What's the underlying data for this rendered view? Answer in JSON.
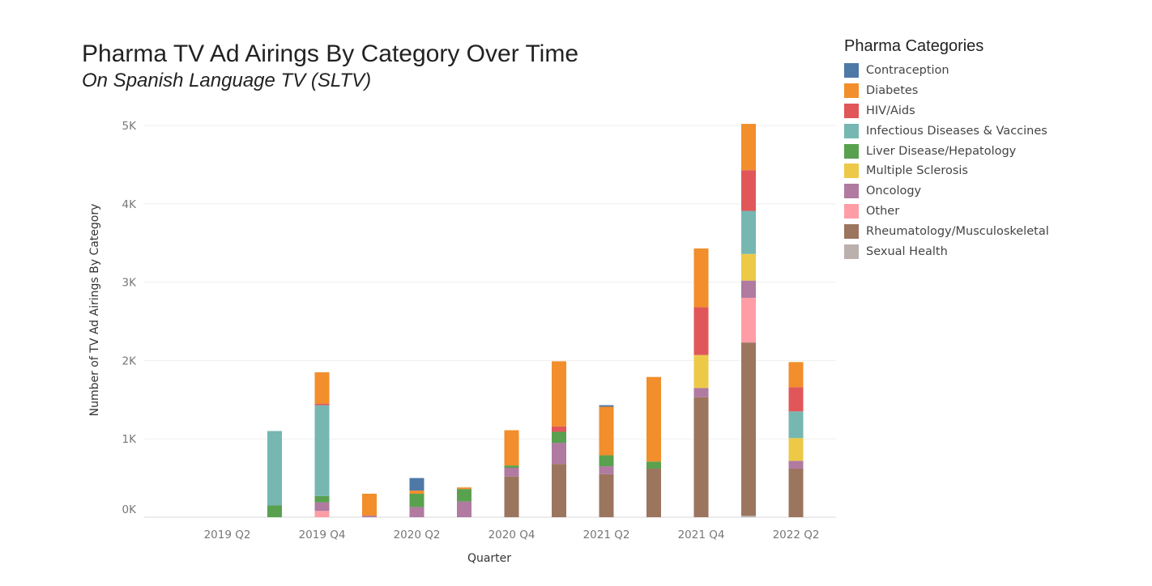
{
  "chart_data": {
    "type": "bar",
    "stacked": true,
    "title": "Pharma TV Ad Airings By Category Over Time",
    "subtitle": "On Spanish Language TV (SLTV)",
    "xlabel": "Quarter",
    "ylabel": "Number of TV Ad Airings By Category",
    "ylim": [
      0,
      5000
    ],
    "y_ticks": [
      {
        "value": 0,
        "label": "0K"
      },
      {
        "value": 1000,
        "label": "1K"
      },
      {
        "value": 2000,
        "label": "2K"
      },
      {
        "value": 3000,
        "label": "3K"
      },
      {
        "value": 4000,
        "label": "4K"
      },
      {
        "value": 5000,
        "label": "5K"
      }
    ],
    "x_tick_labels": [
      "2019 Q2",
      "2019 Q4",
      "2020 Q2",
      "2020 Q4",
      "2021 Q2",
      "2021 Q4",
      "2022 Q2"
    ],
    "categories": [
      "2019 Q1",
      "2019 Q2",
      "2019 Q3",
      "2019 Q4",
      "2020 Q1",
      "2020 Q2",
      "2020 Q3",
      "2020 Q4",
      "2021 Q1",
      "2021 Q2",
      "2021 Q3",
      "2021 Q4",
      "2022 Q1",
      "2022 Q2"
    ],
    "legend_title": "Pharma Categories",
    "legend_position": "right",
    "grid": true,
    "series": [
      {
        "name": "Sexual Health",
        "color": "#bab0ac",
        "values": [
          0,
          0,
          0,
          0,
          0,
          0,
          0,
          0,
          0,
          0,
          0,
          0,
          20,
          0
        ]
      },
      {
        "name": "Rheumatology/Musculoskeletal",
        "color": "#9c755f",
        "values": [
          0,
          0,
          0,
          0,
          0,
          0,
          0,
          520,
          680,
          550,
          620,
          1530,
          2210,
          620
        ]
      },
      {
        "name": "Other",
        "color": "#ff9da7",
        "values": [
          0,
          0,
          0,
          80,
          0,
          0,
          0,
          0,
          0,
          0,
          0,
          0,
          570,
          0
        ]
      },
      {
        "name": "Oncology",
        "color": "#b07aa1",
        "values": [
          0,
          0,
          0,
          110,
          20,
          130,
          200,
          110,
          270,
          100,
          0,
          120,
          220,
          100
        ]
      },
      {
        "name": "Multiple Sclerosis",
        "color": "#edc948",
        "values": [
          0,
          0,
          0,
          0,
          0,
          0,
          0,
          0,
          0,
          0,
          0,
          420,
          340,
          290
        ]
      },
      {
        "name": "Liver Disease/Hepatology",
        "color": "#59a14f",
        "values": [
          0,
          0,
          150,
          80,
          0,
          170,
          160,
          30,
          140,
          140,
          90,
          0,
          0,
          0
        ]
      },
      {
        "name": "Infectious Diseases & Vaccines",
        "color": "#76b7b2",
        "values": [
          0,
          0,
          950,
          1160,
          0,
          0,
          0,
          0,
          0,
          0,
          0,
          0,
          550,
          340
        ]
      },
      {
        "name": "HIV/Aids",
        "color": "#e15759",
        "values": [
          0,
          0,
          0,
          20,
          0,
          0,
          0,
          0,
          70,
          0,
          0,
          610,
          520,
          310
        ]
      },
      {
        "name": "Diabetes",
        "color": "#f28e2b",
        "values": [
          0,
          0,
          0,
          400,
          280,
          40,
          20,
          450,
          830,
          620,
          1080,
          750,
          590,
          320
        ]
      },
      {
        "name": "Contraception",
        "color": "#4e79a7",
        "values": [
          0,
          0,
          0,
          0,
          0,
          160,
          0,
          0,
          0,
          20,
          0,
          0,
          0,
          0
        ]
      }
    ],
    "legend_order": [
      "Contraception",
      "Diabetes",
      "HIV/Aids",
      "Infectious Diseases & Vaccines",
      "Liver Disease/Hepatology",
      "Multiple Sclerosis",
      "Oncology",
      "Other",
      "Rheumatology/Musculoskeletal",
      "Sexual Health"
    ]
  }
}
